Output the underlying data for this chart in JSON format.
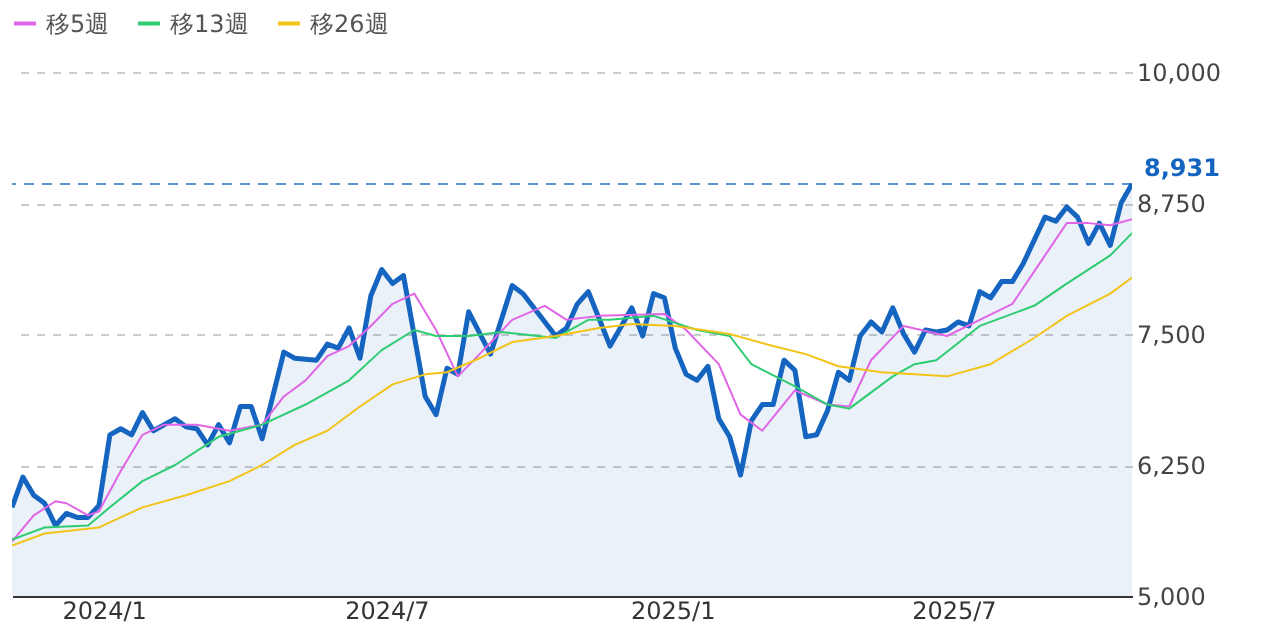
{
  "chart_data": {
    "type": "line",
    "xlim": [
      "2023-11-03",
      "2025-10-24"
    ],
    "xticks": [
      {
        "value": "2024-01-01",
        "label": "2024/1"
      },
      {
        "value": "2024-07-01",
        "label": "2024/7"
      },
      {
        "value": "2025-01-01",
        "label": "2025/1"
      },
      {
        "value": "2025-07-01",
        "label": "2025/7"
      }
    ],
    "ylim": [
      5000,
      10000
    ],
    "yticks": [
      {
        "value": 5000,
        "label": "5,000"
      },
      {
        "value": 6250,
        "label": "6,250"
      },
      {
        "value": 7500,
        "label": "7,500"
      },
      {
        "value": 8750,
        "label": "8,750"
      },
      {
        "value": 10000,
        "label": "10,000"
      }
    ],
    "grid": "y",
    "legend": "top left",
    "line_style": "solid",
    "marker": "none",
    "ref_lines": [
      {
        "axis": "y",
        "value": 8931,
        "label": "8,931",
        "color": "#1565c0",
        "line_style": "dashed"
      }
    ],
    "series": [
      {
        "type": "area",
        "color": "#1565c0",
        "x": [
          "2023-11-03",
          "2023-11-10",
          "2023-11-17",
          "2023-11-24",
          "2023-12-01",
          "2023-12-08",
          "2023-12-15",
          "2023-12-22",
          "2023-12-29",
          "2024-01-05",
          "2024-01-12",
          "2024-01-19",
          "2024-01-26",
          "2024-02-02",
          "2024-02-16",
          "2024-02-23",
          "2024-03-01",
          "2024-03-08",
          "2024-03-15",
          "2024-03-22",
          "2024-03-29",
          "2024-04-05",
          "2024-04-12",
          "2024-04-26",
          "2024-05-03",
          "2024-05-17",
          "2024-05-24",
          "2024-05-31",
          "2024-06-07",
          "2024-06-14",
          "2024-06-21",
          "2024-06-28",
          "2024-07-05",
          "2024-07-12",
          "2024-07-26",
          "2024-08-02",
          "2024-08-09",
          "2024-08-16",
          "2024-08-23",
          "2024-09-06",
          "2024-09-20",
          "2024-09-27",
          "2024-10-18",
          "2024-10-25",
          "2024-11-01",
          "2024-11-08",
          "2024-11-22",
          "2024-12-06",
          "2024-12-13",
          "2024-12-20",
          "2024-12-27",
          "2025-01-03",
          "2025-01-10",
          "2025-01-17",
          "2025-01-24",
          "2025-01-31",
          "2025-02-07",
          "2025-02-14",
          "2025-02-21",
          "2025-02-28",
          "2025-03-07",
          "2025-03-14",
          "2025-03-21",
          "2025-03-28",
          "2025-04-04",
          "2025-04-11",
          "2025-04-18",
          "2025-04-25",
          "2025-05-02",
          "2025-05-09",
          "2025-05-16",
          "2025-05-23",
          "2025-05-30",
          "2025-06-06",
          "2025-06-13",
          "2025-06-20",
          "2025-06-27",
          "2025-07-04",
          "2025-07-11",
          "2025-07-18",
          "2025-07-25",
          "2025-08-01",
          "2025-08-08",
          "2025-08-15",
          "2025-08-29",
          "2025-09-05",
          "2025-09-12",
          "2025-09-19",
          "2025-09-26",
          "2025-10-03",
          "2025-10-10",
          "2025-10-17",
          "2025-10-24"
        ],
        "values": [
          5846,
          6135,
          5962,
          5885,
          5673,
          5788,
          5750,
          5750,
          5865,
          6538,
          6596,
          6538,
          6750,
          6577,
          6692,
          6615,
          6596,
          6442,
          6635,
          6462,
          6808,
          6808,
          6500,
          7327,
          7269,
          7250,
          7404,
          7365,
          7558,
          7269,
          7865,
          8115,
          7981,
          8058,
          6904,
          6731,
          7173,
          7115,
          7712,
          7308,
          7962,
          7885,
          7481,
          7558,
          7788,
          7904,
          7385,
          7750,
          7481,
          7885,
          7846,
          7365,
          7115,
          7058,
          7192,
          6692,
          6519,
          6154,
          6673,
          6827,
          6827,
          7250,
          7154,
          6519,
          6538,
          6769,
          7135,
          7058,
          7481,
          7615,
          7519,
          7750,
          7500,
          7327,
          7538,
          7519,
          7538,
          7615,
          7577,
          7904,
          7846,
          8000,
          8000,
          8173,
          8615,
          8577,
          8712,
          8615,
          8365,
          8558,
          8346,
          8750,
          8931
        ]
      },
      {
        "name": "移5週",
        "color": "#e066e6",
        "x": [
          "2023-11-03",
          "2023-11-17",
          "2023-12-01",
          "2023-12-08",
          "2023-12-22",
          "2023-12-29",
          "2024-01-12",
          "2024-01-26",
          "2024-02-09",
          "2024-03-01",
          "2024-03-22",
          "2024-04-12",
          "2024-04-26",
          "2024-05-10",
          "2024-05-24",
          "2024-06-07",
          "2024-06-21",
          "2024-07-05",
          "2024-07-19",
          "2024-08-02",
          "2024-08-16",
          "2024-08-30",
          "2024-09-20",
          "2024-10-11",
          "2024-10-25",
          "2024-11-15",
          "2024-12-27",
          "2025-01-10",
          "2025-01-31",
          "2025-02-14",
          "2025-02-28",
          "2025-03-21",
          "2025-04-11",
          "2025-04-25",
          "2025-05-09",
          "2025-05-30",
          "2025-06-27",
          "2025-07-18",
          "2025-08-08",
          "2025-08-29",
          "2025-09-12",
          "2025-09-26",
          "2025-10-10",
          "2025-10-24"
        ],
        "values": [
          5519,
          5769,
          5904,
          5885,
          5769,
          5808,
          6192,
          6538,
          6635,
          6635,
          6577,
          6635,
          6904,
          7058,
          7288,
          7385,
          7577,
          7788,
          7885,
          7538,
          7096,
          7308,
          7635,
          7769,
          7635,
          7673,
          7692,
          7538,
          7212,
          6731,
          6577,
          6962,
          6827,
          6808,
          7250,
          7577,
          7481,
          7635,
          7788,
          8250,
          8558,
          8558,
          8538,
          8596
        ]
      },
      {
        "name": "移13週",
        "color": "#2ecc71",
        "x": [
          "2023-11-03",
          "2023-11-24",
          "2023-12-22",
          "2024-01-05",
          "2024-01-26",
          "2024-02-16",
          "2024-03-15",
          "2024-04-12",
          "2024-05-10",
          "2024-06-07",
          "2024-06-28",
          "2024-07-19",
          "2024-08-02",
          "2024-08-23",
          "2024-09-13",
          "2024-10-18",
          "2024-11-08",
          "2024-11-22",
          "2024-12-20",
          "2025-01-17",
          "2025-02-07",
          "2025-02-21",
          "2025-03-21",
          "2025-04-11",
          "2025-04-25",
          "2025-05-23",
          "2025-06-06",
          "2025-06-20",
          "2025-07-18",
          "2025-08-22",
          "2025-09-12",
          "2025-10-10",
          "2025-10-24"
        ],
        "values": [
          5538,
          5654,
          5673,
          5846,
          6096,
          6250,
          6519,
          6635,
          6827,
          7058,
          7346,
          7538,
          7481,
          7481,
          7519,
          7462,
          7635,
          7635,
          7673,
          7538,
          7481,
          7212,
          7000,
          6827,
          6788,
          7096,
          7212,
          7250,
          7577,
          7769,
          7981,
          8250,
          8462
        ]
      },
      {
        "name": "移26週",
        "color": "#f2c318",
        "x": [
          "2023-11-03",
          "2023-11-24",
          "2023-12-29",
          "2024-01-26",
          "2024-02-23",
          "2024-03-22",
          "2024-04-12",
          "2024-05-03",
          "2024-05-24",
          "2024-06-14",
          "2024-07-05",
          "2024-07-26",
          "2024-08-09",
          "2024-08-30",
          "2024-09-20",
          "2024-10-18",
          "2024-11-15",
          "2024-12-06",
          "2025-01-03",
          "2025-02-07",
          "2025-03-07",
          "2025-03-28",
          "2025-04-18",
          "2025-05-16",
          "2025-06-06",
          "2025-06-27",
          "2025-07-25",
          "2025-08-22",
          "2025-09-12",
          "2025-10-10",
          "2025-10-24"
        ],
        "values": [
          5481,
          5596,
          5654,
          5846,
          5962,
          6096,
          6250,
          6442,
          6577,
          6808,
          7019,
          7115,
          7135,
          7269,
          7423,
          7481,
          7558,
          7596,
          7577,
          7500,
          7385,
          7308,
          7192,
          7135,
          7115,
          7096,
          7212,
          7462,
          7673,
          7885,
          8038
        ]
      }
    ]
  }
}
